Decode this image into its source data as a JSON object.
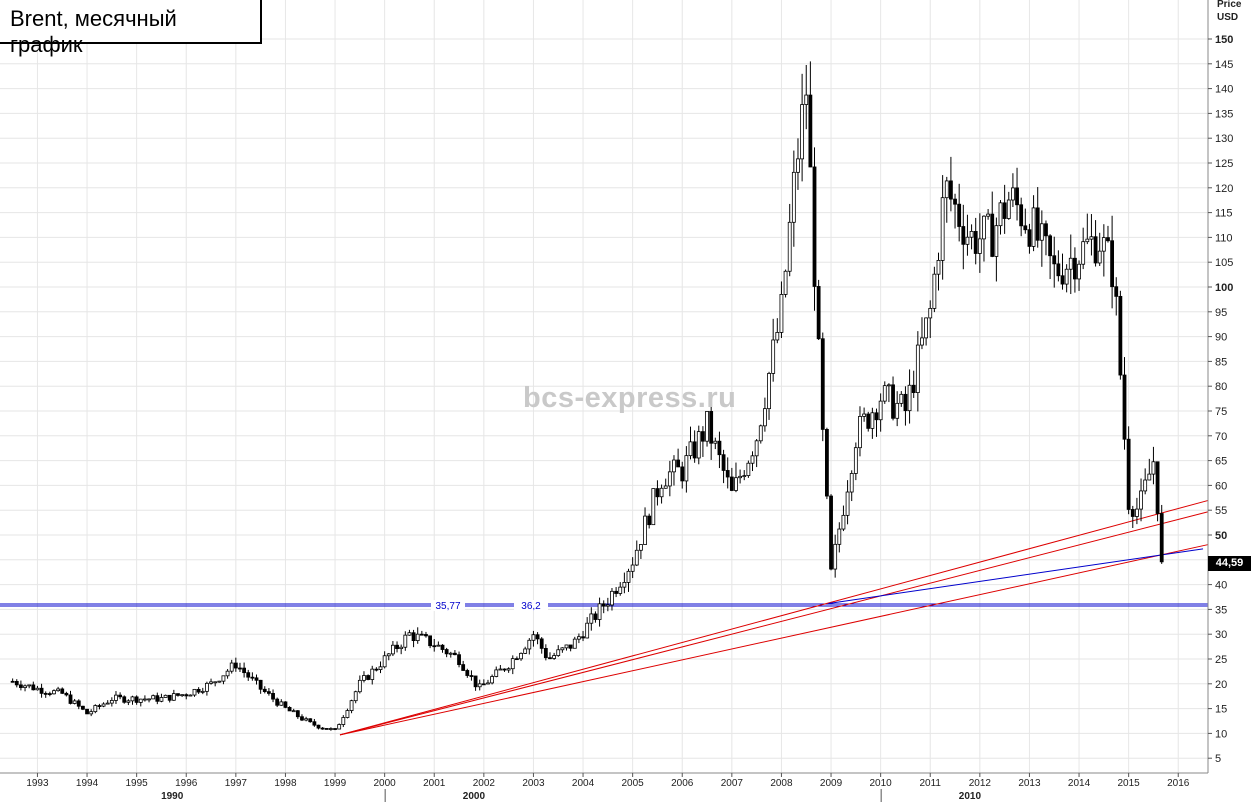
{
  "header": {
    "title": "Brent, месячный график"
  },
  "watermark": "bcs-express.ru",
  "axis": {
    "price_label": "Price",
    "currency_label": "USD"
  },
  "last_price_label": "44,59",
  "annotations": {
    "level_1": "35,77",
    "level_2": "36,2"
  },
  "colors": {
    "candle": "#000000",
    "trend_lines": "#dd0000",
    "support_lines": "#0000cc",
    "grid": "#e6e6e6"
  },
  "chart_data": {
    "type": "line",
    "title": "Brent, месячный график",
    "xlabel": "",
    "ylabel": "Price USD",
    "ylim": [
      1,
      152
    ],
    "xlim": [
      1992.5,
      2016.8
    ],
    "y_ticks": [
      5,
      10,
      15,
      20,
      25,
      30,
      35,
      40,
      45,
      50,
      55,
      60,
      65,
      70,
      75,
      80,
      85,
      90,
      95,
      100,
      105,
      110,
      115,
      120,
      125,
      130,
      135,
      140,
      145,
      150
    ],
    "year_ticks": [
      "1993",
      "1994",
      "1995",
      "1996",
      "1997",
      "1998",
      "1999",
      "2000",
      "2001",
      "2002",
      "2003",
      "2004",
      "2005",
      "2006",
      "2007",
      "2008",
      "2009",
      "2010",
      "2011",
      "2012",
      "2013",
      "2014",
      "2015",
      "2016"
    ],
    "decade_labels": [
      "1990",
      "2000",
      "2010"
    ],
    "grid": true,
    "series": [
      {
        "x": [
          1992.5,
          1993.0,
          1993.5,
          1994.0,
          1994.5,
          1995.0,
          1995.5,
          1996.0,
          1996.5,
          1997.0,
          1997.5,
          1998.0,
          1998.5,
          1999.0,
          1999.5,
          2000.0,
          2000.5,
          2001.0,
          2001.5,
          2001.9,
          2002.5,
          2003.0,
          2003.3,
          2003.8,
          2004.5,
          2005.0,
          2005.6,
          2006.0,
          2006.5,
          2007.0,
          2007.5,
          2008.0,
          2008.3,
          2008.5,
          2008.8,
          2009.0,
          2009.5,
          2010.0,
          2010.5,
          2011.0,
          2011.3,
          2011.8,
          2012.2,
          2012.6,
          2013.0,
          2013.5,
          2014.0,
          2014.4,
          2014.7,
          2015.0,
          2015.2,
          2015.5,
          2015.7
        ],
        "values": [
          20.5,
          19,
          18,
          14,
          17,
          17,
          17,
          18,
          20,
          24,
          19,
          15,
          12,
          10.5,
          20,
          25,
          30,
          28,
          25,
          19,
          24,
          30,
          25,
          28,
          37,
          45,
          62,
          63,
          72,
          58,
          70,
          95,
          125,
          140,
          75,
          42,
          70,
          78,
          75,
          95,
          120,
          110,
          110,
          118,
          113,
          103,
          107,
          110,
          103,
          57,
          55,
          65,
          44.59
        ]
      }
    ],
    "horizontal_levels": [
      {
        "value": 35.77,
        "label": "35,77"
      },
      {
        "value": 36.2,
        "label": "36,2"
      }
    ],
    "trend_lines": [
      {
        "color": "red",
        "from": [
          1999.1,
          9.7
        ],
        "to": [
          2016.8,
          57.5
        ]
      },
      {
        "color": "red",
        "from": [
          1999.1,
          9.7
        ],
        "to": [
          2016.8,
          55.2
        ]
      },
      {
        "color": "red",
        "from": [
          1999.1,
          9.7
        ],
        "to": [
          2016.8,
          48.5
        ]
      },
      {
        "color": "blue",
        "from": [
          2008.95,
          36.2
        ],
        "to": [
          2016.5,
          47.2
        ]
      }
    ],
    "last_value": 44.59
  }
}
